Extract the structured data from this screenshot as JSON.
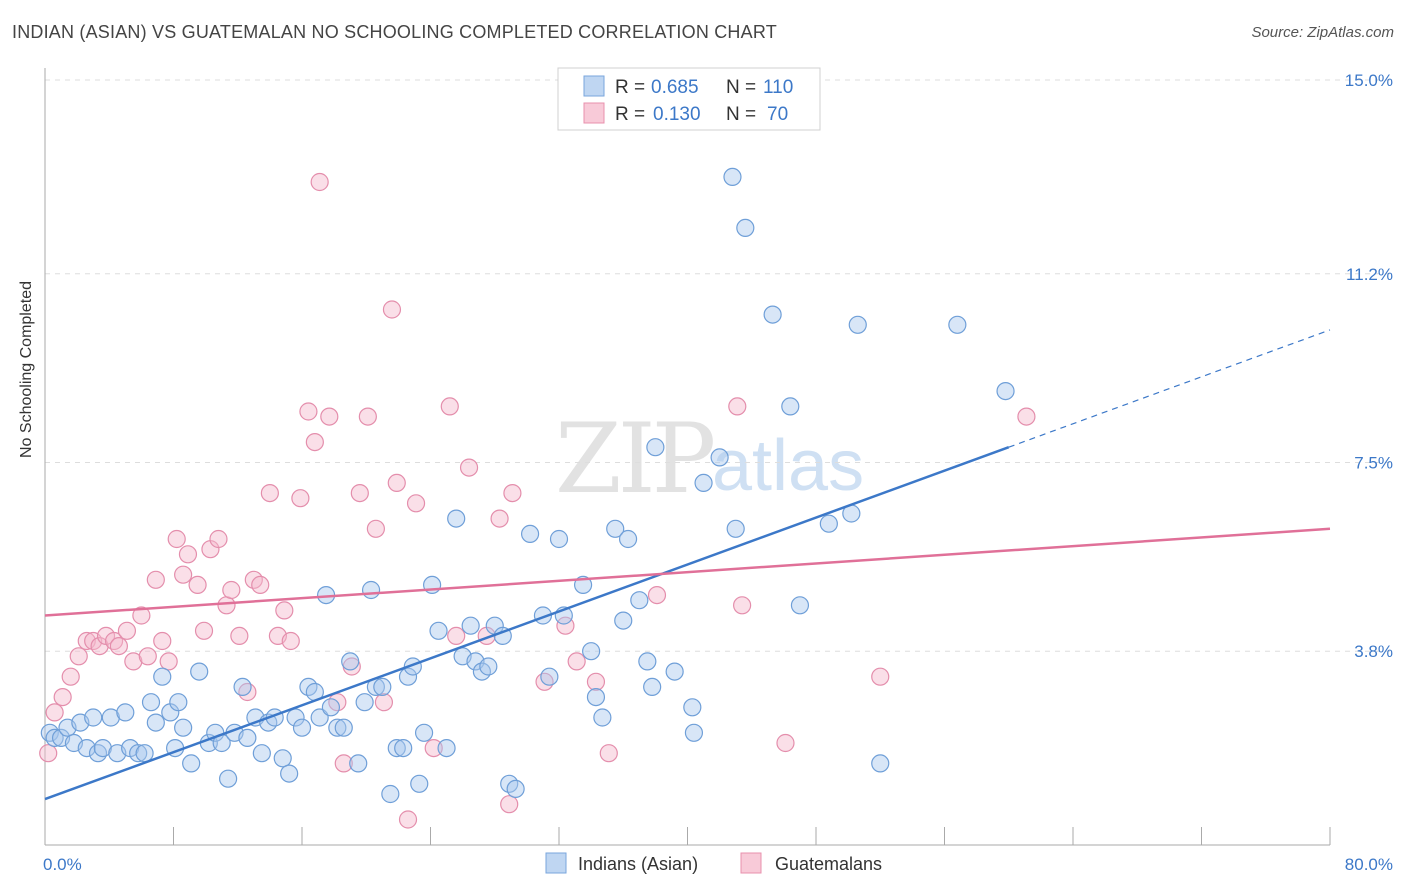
{
  "title": "INDIAN (ASIAN) VS GUATEMALAN NO SCHOOLING COMPLETED CORRELATION CHART",
  "source": "Source: ZipAtlas.com",
  "watermark": {
    "zip": "ZIP",
    "atlas": "atlas"
  },
  "colors": {
    "blue": "#3c78c8",
    "blue_fill": "#a9c8ee",
    "pink": "#e07098",
    "pink_fill": "#f5b8cb",
    "grid": "#dddddd",
    "axis": "#999999"
  },
  "legend": {
    "rows": [
      {
        "r_label": "R =",
        "r_value": "0.685",
        "n_label": "N =",
        "n_value": "110"
      },
      {
        "r_label": "R =",
        "r_value": "0.130",
        "n_label": "N =",
        "n_value": "70"
      }
    ]
  },
  "bottom_legend": {
    "items": [
      "Indians (Asian)",
      "Guatemalans"
    ]
  },
  "chart_data": {
    "type": "scatter",
    "title": "INDIAN (ASIAN) VS GUATEMALAN NO SCHOOLING COMPLETED CORRELATION CHART",
    "xlabel": "",
    "ylabel": "No Schooling Completed",
    "xlim": [
      0,
      80
    ],
    "ylim": [
      0,
      15
    ],
    "x_tick_labels": [
      "0.0%",
      "80.0%"
    ],
    "y_ticks": [
      3.8,
      7.5,
      11.2,
      15.0
    ],
    "y_tick_labels": [
      "3.8%",
      "7.5%",
      "11.2%",
      "15.0%"
    ],
    "grid": true,
    "legend_position": "top-center",
    "series": [
      {
        "name": "Indians (Asian)",
        "color": "#3c78c8",
        "regression": {
          "x": [
            0,
            60
          ],
          "y": [
            0.9,
            7.8
          ],
          "dashed_extension_to": [
            80,
            10.1
          ]
        },
        "points": [
          [
            0.3,
            2.2
          ],
          [
            0.6,
            2.1
          ],
          [
            1.0,
            2.1
          ],
          [
            1.4,
            2.3
          ],
          [
            1.8,
            2.0
          ],
          [
            2.2,
            2.4
          ],
          [
            2.6,
            1.9
          ],
          [
            3.0,
            2.5
          ],
          [
            3.3,
            1.8
          ],
          [
            3.6,
            1.9
          ],
          [
            4.1,
            2.5
          ],
          [
            4.5,
            1.8
          ],
          [
            5.0,
            2.6
          ],
          [
            5.3,
            1.9
          ],
          [
            5.8,
            1.8
          ],
          [
            6.2,
            1.8
          ],
          [
            6.6,
            2.8
          ],
          [
            6.9,
            2.4
          ],
          [
            7.3,
            3.3
          ],
          [
            7.8,
            2.6
          ],
          [
            8.1,
            1.9
          ],
          [
            8.3,
            2.8
          ],
          [
            8.6,
            2.3
          ],
          [
            9.1,
            1.6
          ],
          [
            9.6,
            3.4
          ],
          [
            10.2,
            2.0
          ],
          [
            10.6,
            2.2
          ],
          [
            11.0,
            2.0
          ],
          [
            11.4,
            1.3
          ],
          [
            11.8,
            2.2
          ],
          [
            12.3,
            3.1
          ],
          [
            12.6,
            2.1
          ],
          [
            13.1,
            2.5
          ],
          [
            13.5,
            1.8
          ],
          [
            13.9,
            2.4
          ],
          [
            14.3,
            2.5
          ],
          [
            14.8,
            1.7
          ],
          [
            15.2,
            1.4
          ],
          [
            15.6,
            2.5
          ],
          [
            16.0,
            2.3
          ],
          [
            16.4,
            3.1
          ],
          [
            16.8,
            3.0
          ],
          [
            17.1,
            2.5
          ],
          [
            17.5,
            4.9
          ],
          [
            17.8,
            2.7
          ],
          [
            18.2,
            2.3
          ],
          [
            18.6,
            2.3
          ],
          [
            19.0,
            3.6
          ],
          [
            19.5,
            1.6
          ],
          [
            19.9,
            2.8
          ],
          [
            20.3,
            5.0
          ],
          [
            20.6,
            3.1
          ],
          [
            21.0,
            3.1
          ],
          [
            21.5,
            1.0
          ],
          [
            21.9,
            1.9
          ],
          [
            22.3,
            1.9
          ],
          [
            22.6,
            3.3
          ],
          [
            22.9,
            3.5
          ],
          [
            23.3,
            1.2
          ],
          [
            23.6,
            2.2
          ],
          [
            24.1,
            5.1
          ],
          [
            24.5,
            4.2
          ],
          [
            25.0,
            1.9
          ],
          [
            25.6,
            6.4
          ],
          [
            26.0,
            3.7
          ],
          [
            26.5,
            4.3
          ],
          [
            26.8,
            3.6
          ],
          [
            27.2,
            3.4
          ],
          [
            27.6,
            3.5
          ],
          [
            28.0,
            4.3
          ],
          [
            28.5,
            4.1
          ],
          [
            28.9,
            1.2
          ],
          [
            29.3,
            1.1
          ],
          [
            30.2,
            6.1
          ],
          [
            31.0,
            4.5
          ],
          [
            31.4,
            3.3
          ],
          [
            32.0,
            6.0
          ],
          [
            32.3,
            4.5
          ],
          [
            33.5,
            5.1
          ],
          [
            34.0,
            3.8
          ],
          [
            34.3,
            2.9
          ],
          [
            34.7,
            2.5
          ],
          [
            35.5,
            6.2
          ],
          [
            36.0,
            4.4
          ],
          [
            36.3,
            6.0
          ],
          [
            37.0,
            4.8
          ],
          [
            37.5,
            3.6
          ],
          [
            37.8,
            3.1
          ],
          [
            38.0,
            7.8
          ],
          [
            39.2,
            3.4
          ],
          [
            40.3,
            2.7
          ],
          [
            40.4,
            2.2
          ],
          [
            41.0,
            7.1
          ],
          [
            42.0,
            7.6
          ],
          [
            42.8,
            13.1
          ],
          [
            43.0,
            6.2
          ],
          [
            43.6,
            12.1
          ],
          [
            45.3,
            10.4
          ],
          [
            46.4,
            8.6
          ],
          [
            47.0,
            4.7
          ],
          [
            48.8,
            6.3
          ],
          [
            50.2,
            6.5
          ],
          [
            50.6,
            10.2
          ],
          [
            52.0,
            1.6
          ],
          [
            56.8,
            10.2
          ],
          [
            59.8,
            8.9
          ]
        ]
      },
      {
        "name": "Guatemalans",
        "color": "#e07098",
        "regression": {
          "x": [
            0,
            80
          ],
          "y": [
            4.5,
            6.2
          ]
        },
        "points": [
          [
            0.2,
            1.8
          ],
          [
            0.6,
            2.6
          ],
          [
            1.1,
            2.9
          ],
          [
            1.6,
            3.3
          ],
          [
            2.1,
            3.7
          ],
          [
            2.6,
            4.0
          ],
          [
            3.0,
            4.0
          ],
          [
            3.4,
            3.9
          ],
          [
            3.8,
            4.1
          ],
          [
            4.3,
            4.0
          ],
          [
            4.6,
            3.9
          ],
          [
            5.1,
            4.2
          ],
          [
            5.5,
            3.6
          ],
          [
            6.0,
            4.5
          ],
          [
            6.4,
            3.7
          ],
          [
            6.9,
            5.2
          ],
          [
            7.3,
            4.0
          ],
          [
            7.7,
            3.6
          ],
          [
            8.2,
            6.0
          ],
          [
            8.6,
            5.3
          ],
          [
            8.9,
            5.7
          ],
          [
            9.5,
            5.1
          ],
          [
            9.9,
            4.2
          ],
          [
            10.3,
            5.8
          ],
          [
            10.8,
            6.0
          ],
          [
            11.3,
            4.7
          ],
          [
            11.6,
            5.0
          ],
          [
            12.1,
            4.1
          ],
          [
            12.6,
            3.0
          ],
          [
            13.0,
            5.2
          ],
          [
            13.4,
            5.1
          ],
          [
            14.0,
            6.9
          ],
          [
            14.5,
            4.1
          ],
          [
            14.9,
            4.6
          ],
          [
            15.3,
            4.0
          ],
          [
            15.9,
            6.8
          ],
          [
            16.4,
            8.5
          ],
          [
            16.8,
            7.9
          ],
          [
            17.1,
            13.0
          ],
          [
            17.7,
            8.4
          ],
          [
            18.2,
            2.8
          ],
          [
            18.6,
            1.6
          ],
          [
            19.1,
            3.5
          ],
          [
            19.6,
            6.9
          ],
          [
            20.1,
            8.4
          ],
          [
            20.6,
            6.2
          ],
          [
            21.1,
            2.8
          ],
          [
            21.6,
            10.5
          ],
          [
            21.9,
            7.1
          ],
          [
            22.6,
            0.5
          ],
          [
            23.1,
            6.7
          ],
          [
            24.2,
            1.9
          ],
          [
            25.2,
            8.6
          ],
          [
            25.6,
            4.1
          ],
          [
            26.4,
            7.4
          ],
          [
            27.5,
            4.1
          ],
          [
            28.3,
            6.4
          ],
          [
            28.9,
            0.8
          ],
          [
            29.1,
            6.9
          ],
          [
            31.1,
            3.2
          ],
          [
            32.4,
            4.3
          ],
          [
            33.1,
            3.6
          ],
          [
            34.3,
            3.2
          ],
          [
            35.1,
            1.8
          ],
          [
            38.1,
            4.9
          ],
          [
            43.1,
            8.6
          ],
          [
            43.4,
            4.7
          ],
          [
            46.1,
            2.0
          ],
          [
            52.0,
            3.3
          ],
          [
            61.1,
            8.4
          ]
        ]
      }
    ]
  }
}
